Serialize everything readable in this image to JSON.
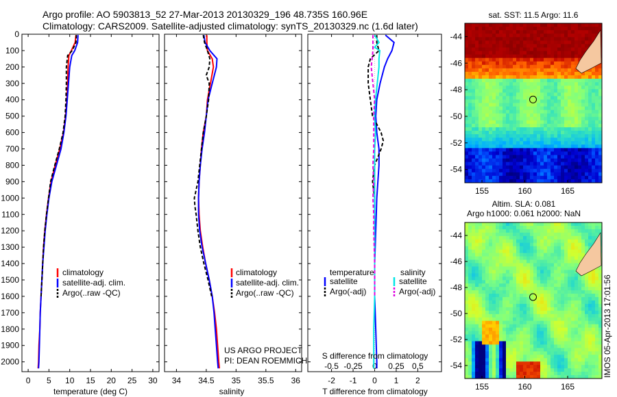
{
  "figure": {
    "title_line1": "Argo profile: AO 5903813_52 27-Mar-2013 20130329_196 48.735S 160.96E",
    "title_line2": "Climatology: CARS2009. Satellite-adjusted climatology: synTS_20130329.nc (1.6d later)",
    "project_line1": "US ARGO PROJECT",
    "project_line2": "PI: DEAN ROEMMICH",
    "stamp": "IMOS 05-Apr-2013 17:01:56"
  },
  "colors": {
    "climatology": "#ff0000",
    "satellite": "#0000ff",
    "argo": "#000000",
    "sal_satellite": "#00e5e5",
    "sal_argo": "#e000e0",
    "land": "#f5c8a0"
  },
  "chart_data": [
    {
      "type": "line",
      "name": "temperature-profile",
      "xlabel": "temperature (deg C)",
      "xlim": [
        -1.5,
        31.5
      ],
      "xticks": [
        0,
        5,
        10,
        15,
        20,
        25,
        30
      ],
      "ylim": [
        2060,
        0
      ],
      "yticks": [
        0,
        100,
        200,
        300,
        400,
        500,
        600,
        700,
        800,
        900,
        1000,
        1100,
        1200,
        1300,
        1400,
        1500,
        1600,
        1700,
        1800,
        1900,
        2000
      ],
      "legend": [
        "climatology",
        "satellite-adj. clim.",
        "Argo(..raw -QC)"
      ],
      "series": [
        {
          "name": "climatology",
          "color": "#ff0000",
          "depth": [
            5,
            50,
            100,
            130,
            200,
            300,
            400,
            500,
            600,
            700,
            800,
            900,
            1000,
            1100,
            1200,
            1300,
            1400,
            1500,
            1600,
            1700,
            1800,
            1900,
            2000,
            2040
          ],
          "values": [
            11.5,
            11.3,
            10.4,
            9.8,
            9.6,
            9.5,
            9.3,
            9.0,
            8.5,
            7.6,
            6.5,
            5.5,
            4.9,
            4.4,
            4.0,
            3.7,
            3.5,
            3.3,
            3.1,
            2.9,
            2.8,
            2.6,
            2.5,
            2.4
          ]
        },
        {
          "name": "satellite-adj. clim.",
          "color": "#0000ff",
          "depth": [
            5,
            50,
            100,
            130,
            200,
            300,
            400,
            500,
            600,
            700,
            800,
            900,
            1000,
            1100,
            1200,
            1300,
            1400,
            1500,
            1600,
            1700,
            1800,
            1900,
            2000,
            2040
          ],
          "values": [
            12.0,
            11.9,
            11.2,
            10.5,
            10.0,
            9.7,
            9.4,
            9.1,
            8.6,
            7.9,
            6.8,
            5.7,
            5.0,
            4.5,
            4.1,
            3.8,
            3.5,
            3.3,
            3.1,
            2.9,
            2.8,
            2.7,
            2.6,
            2.5
          ]
        },
        {
          "name": "Argo(..raw -QC)",
          "color": "#000000",
          "depth": [
            5,
            50,
            100,
            130,
            200,
            300,
            400,
            500,
            600,
            700,
            800,
            900,
            1000,
            1100,
            1200,
            1300,
            1400,
            1500,
            1600
          ],
          "values": [
            11.6,
            11.5,
            10.6,
            9.5,
            9.2,
            9.2,
            9.1,
            8.9,
            8.4,
            7.5,
            6.4,
            5.4,
            4.9,
            4.4,
            4.0,
            3.7,
            3.5,
            3.3,
            3.1
          ]
        }
      ]
    },
    {
      "type": "line",
      "name": "salinity-profile",
      "xlabel": "salinity",
      "xlim": [
        33.8,
        36.1
      ],
      "xticks": [
        34,
        34.5,
        35,
        35.5,
        36
      ],
      "ylim": [
        2060,
        0
      ],
      "legend": [
        "climatology",
        "satellite-adj. clim.",
        "Argo(..raw -QC)"
      ],
      "series": [
        {
          "name": "climatology",
          "color": "#ff0000",
          "depth": [
            5,
            50,
            100,
            150,
            200,
            300,
            400,
            500,
            600,
            700,
            800,
            900,
            1000,
            1100,
            1200,
            1300,
            1400,
            1500,
            1600,
            1700,
            1800,
            1900,
            2000,
            2040
          ],
          "values": [
            34.51,
            34.51,
            34.52,
            34.6,
            34.62,
            34.57,
            34.52,
            34.5,
            34.45,
            34.42,
            34.4,
            34.38,
            34.37,
            34.38,
            34.4,
            34.44,
            34.49,
            34.55,
            34.6,
            34.64,
            34.67,
            34.69,
            34.71,
            34.72
          ]
        },
        {
          "name": "satellite-adj. clim.",
          "color": "#0000ff",
          "depth": [
            5,
            50,
            100,
            150,
            200,
            300,
            400,
            500,
            600,
            700,
            800,
            900,
            1000,
            1100,
            1200,
            1300,
            1400,
            1500,
            1600,
            1700,
            1800,
            1900,
            2000,
            2040
          ],
          "values": [
            34.46,
            34.48,
            34.56,
            34.68,
            34.67,
            34.6,
            34.53,
            34.5,
            34.47,
            34.43,
            34.4,
            34.38,
            34.37,
            34.37,
            34.39,
            34.43,
            34.49,
            34.55,
            34.6,
            34.63,
            34.65,
            34.67,
            34.69,
            34.7
          ]
        },
        {
          "name": "Argo(..raw -QC)",
          "color": "#000000",
          "depth": [
            5,
            50,
            100,
            150,
            200,
            250,
            300,
            400,
            500,
            600,
            700,
            800,
            900,
            950,
            1000,
            1050,
            1100,
            1200,
            1300,
            1400,
            1500,
            1600
          ],
          "values": [
            34.45,
            34.47,
            34.52,
            34.56,
            34.55,
            34.5,
            34.55,
            34.54,
            34.5,
            34.45,
            34.42,
            34.39,
            34.36,
            34.33,
            34.3,
            34.31,
            34.33,
            34.36,
            34.4,
            34.46,
            34.53,
            34.59
          ]
        }
      ]
    },
    {
      "type": "line",
      "name": "difference-profile",
      "xlabel": "T difference from climatology",
      "xlabel_top": "S difference from climatology",
      "xlim": [
        -3.1,
        3.1
      ],
      "xticks": [
        -2,
        -1,
        0,
        1,
        2
      ],
      "xticks_top": [
        -0.5,
        -0.25,
        0,
        0.25,
        0.5
      ],
      "xticks_top_labels": [
        "-0.5",
        "-0.25",
        "0",
        "0.25",
        "0.5"
      ],
      "ylim": [
        2060,
        0
      ],
      "legend_title_left": "temperature",
      "legend_title_right": "salinity",
      "legend": [
        "satellite",
        "Argo(-adj)",
        "satellite",
        "Argo(-adj)"
      ],
      "series": [
        {
          "name": "satellite",
          "color": "#0000ff",
          "depth": [
            5,
            50,
            100,
            150,
            200,
            300,
            400,
            500,
            600,
            700,
            800,
            1000,
            1200,
            1400,
            1600,
            1800,
            2000,
            2040
          ],
          "values": [
            0.5,
            0.9,
            0.8,
            0.6,
            0.45,
            0.25,
            0.1,
            0.05,
            0.1,
            0.2,
            0.2,
            0.1,
            0.05,
            0.0,
            0.0,
            0.05,
            0.1,
            0.1
          ]
        },
        {
          "name": "Argo(-adj)",
          "color": "#000000",
          "depth": [
            5,
            50,
            100,
            150,
            200,
            300,
            400,
            500,
            600,
            650,
            700,
            800,
            900,
            1000,
            1100,
            1200,
            1300,
            1400,
            1500,
            1600
          ],
          "values": [
            0.1,
            0.1,
            0.2,
            -0.2,
            -0.3,
            -0.3,
            -0.2,
            -0.1,
            0.3,
            0.4,
            0.3,
            0.0,
            -0.1,
            0.0,
            0.0,
            0.0,
            0.0,
            0.0,
            0.0,
            0.0
          ]
        },
        {
          "name": "sal satellite",
          "color": "#00e5e5",
          "depth": [
            5,
            50,
            80,
            100,
            150,
            200,
            300,
            400,
            500,
            600,
            700,
            800,
            1000,
            1200,
            1400,
            1600,
            1800,
            2000,
            2040
          ],
          "values": [
            0.0,
            0.05,
            0.0,
            0.06,
            0.05,
            0.05,
            0.03,
            0.01,
            0.0,
            0.01,
            0.0,
            0.0,
            0.0,
            0.0,
            0.0,
            0.0,
            -0.01,
            -0.01,
            -0.01
          ]
        },
        {
          "name": "sal Argo(-adj)",
          "color": "#e000e0",
          "depth": [
            5,
            50,
            100,
            200,
            300,
            400,
            500,
            600,
            700,
            800,
            900,
            1000,
            1100,
            1200,
            1400,
            1600
          ],
          "values": [
            -0.02,
            -0.02,
            -0.02,
            -0.04,
            -0.02,
            0.0,
            -0.01,
            -0.01,
            -0.01,
            -0.02,
            -0.01,
            -0.02,
            -0.01,
            -0.01,
            0.0,
            0.0
          ]
        }
      ]
    },
    {
      "type": "heatmap",
      "name": "sst-map",
      "title": "sat. SST: 11.5 Argo: 11.6",
      "xlim": [
        153,
        169
      ],
      "ylim": [
        -55,
        -43
      ],
      "xticks": [
        155,
        160,
        165
      ],
      "yticks": [
        -44,
        -46,
        -48,
        -50,
        -52,
        -54
      ],
      "yticklabels": [
        "-44",
        "-46",
        "-48",
        "-50",
        "-52",
        "-54"
      ],
      "xticklabels": [
        "155",
        "160",
        "165"
      ],
      "marker": {
        "lon": 160.96,
        "lat": -48.735
      },
      "colormap": [
        "#00007f",
        "#0000d0",
        "#0050ff",
        "#00b0ff",
        "#30e0c0",
        "#7fff7f",
        "#d0ff30",
        "#ffd000",
        "#ff6000",
        "#c00000",
        "#800000"
      ],
      "value_range": [
        6.0,
        16.0
      ]
    },
    {
      "type": "heatmap",
      "name": "sla-map",
      "title_line1": "Altim. SLA: 0.081",
      "title_line2": "Argo h1000: 0.061 h2000: NaN",
      "xlim": [
        153,
        169
      ],
      "ylim": [
        -55,
        -43
      ],
      "xticks": [
        155,
        160,
        165
      ],
      "yticks": [
        -44,
        -46,
        -48,
        -50,
        -52,
        -54
      ],
      "yticklabels": [
        "-44",
        "-46",
        "-48",
        "-50",
        "-52",
        "-54"
      ],
      "xticklabels": [
        "155",
        "160",
        "165"
      ],
      "marker": {
        "lon": 160.96,
        "lat": -48.735
      },
      "colormap": [
        "#00007f",
        "#0000d0",
        "#0050ff",
        "#00b0ff",
        "#30e0c0",
        "#7fff7f",
        "#d0ff30",
        "#ffd000",
        "#ff6000",
        "#c00000",
        "#800000"
      ],
      "value_range": [
        -0.4,
        0.4
      ]
    }
  ]
}
